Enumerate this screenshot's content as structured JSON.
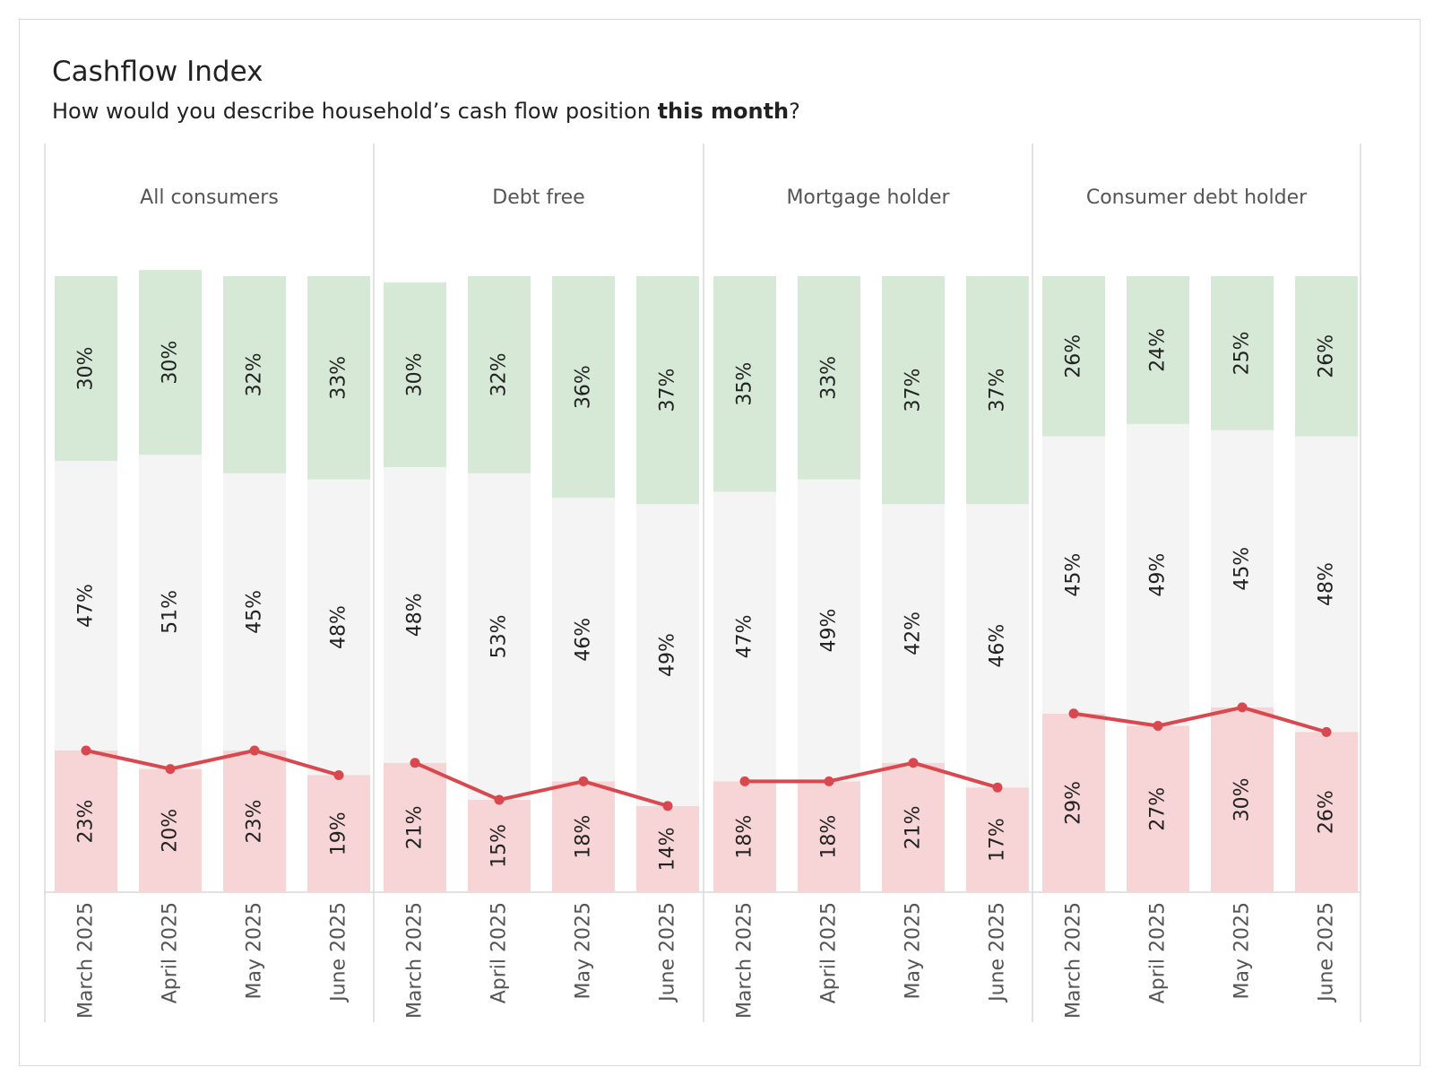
{
  "title": "Cashflow Index",
  "subtitle": {
    "before": "How would you describe household’s cash flow position ",
    "emphasis": "this month",
    "after": "?"
  },
  "colors": {
    "positive": "#d6e9d6",
    "neutral": "#f4f4f4",
    "negative": "#f7d4d6",
    "line": "#d9484e",
    "grid": "#d9d9d9",
    "text": "#222222",
    "header_text": "#555555"
  },
  "chart_data": {
    "type": "bar",
    "stacked": true,
    "orientation": "vertical",
    "ylim": [
      0,
      100
    ],
    "categories": [
      "March 2025",
      "April 2025",
      "May 2025",
      "June 2025"
    ],
    "panels": [
      {
        "name": "All consumers",
        "series": [
          {
            "key": "negative",
            "values": [
              23,
              20,
              23,
              19
            ],
            "labels": [
              "23%",
              "20%",
              "23%",
              "19%"
            ]
          },
          {
            "key": "neutral",
            "values": [
              47,
              51,
              45,
              48
            ],
            "labels": [
              "47%",
              "51%",
              "45%",
              "48%"
            ]
          },
          {
            "key": "positive",
            "values": [
              30,
              30,
              32,
              33
            ],
            "labels": [
              "30%",
              "30%",
              "32%",
              "33%"
            ]
          }
        ]
      },
      {
        "name": "Debt free",
        "series": [
          {
            "key": "negative",
            "values": [
              21,
              15,
              18,
              14
            ],
            "labels": [
              "21%",
              "15%",
              "18%",
              "14%"
            ]
          },
          {
            "key": "neutral",
            "values": [
              48,
              53,
              46,
              49
            ],
            "labels": [
              "48%",
              "53%",
              "46%",
              "49%"
            ]
          },
          {
            "key": "positive",
            "values": [
              30,
              32,
              36,
              37
            ],
            "labels": [
              "30%",
              "32%",
              "36%",
              "37%"
            ]
          }
        ]
      },
      {
        "name": "Mortgage holder",
        "series": [
          {
            "key": "negative",
            "values": [
              18,
              18,
              21,
              17
            ],
            "labels": [
              "18%",
              "18%",
              "21%",
              "17%"
            ]
          },
          {
            "key": "neutral",
            "values": [
              47,
              49,
              42,
              46
            ],
            "labels": [
              "47%",
              "49%",
              "42%",
              "46%"
            ]
          },
          {
            "key": "positive",
            "values": [
              35,
              33,
              37,
              37
            ],
            "labels": [
              "35%",
              "33%",
              "37%",
              "37%"
            ]
          }
        ]
      },
      {
        "name": "Consumer debt holder",
        "series": [
          {
            "key": "negative",
            "values": [
              29,
              27,
              30,
              26
            ],
            "labels": [
              "29%",
              "27%",
              "30%",
              "26%"
            ]
          },
          {
            "key": "neutral",
            "values": [
              45,
              49,
              45,
              48
            ],
            "labels": [
              "45%",
              "49%",
              "45%",
              "48%"
            ]
          },
          {
            "key": "positive",
            "values": [
              26,
              24,
              25,
              26
            ],
            "labels": [
              "26%",
              "24%",
              "25%",
              "26%"
            ]
          }
        ]
      }
    ],
    "line": {
      "key": "negative"
    }
  }
}
